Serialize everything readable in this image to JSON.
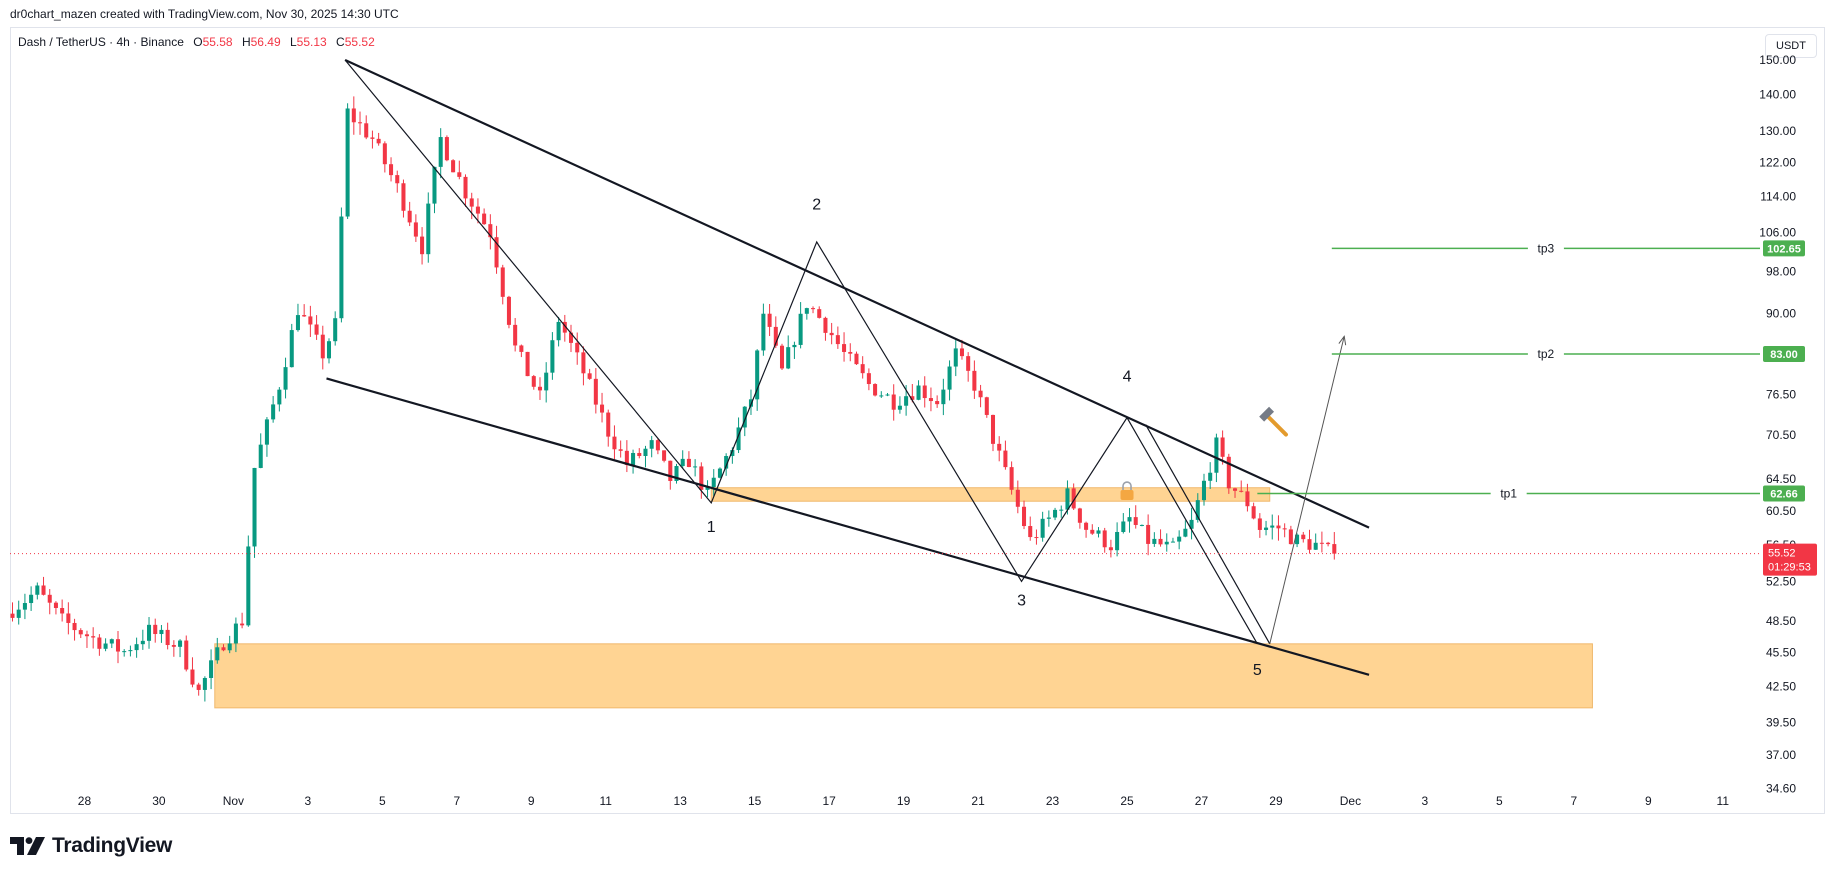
{
  "header": {
    "credit": "dr0chart_mazen created with TradingView.com, Nov 30, 2025 14:30 UTC"
  },
  "symbol": {
    "name": "Dash / TetherUS · 4h · Binance",
    "open_label": "O",
    "open": "55.58",
    "high_label": "H",
    "high": "56.49",
    "low_label": "L",
    "low": "55.13",
    "close_label": "C",
    "close": "55.52"
  },
  "currency_button": "USDT",
  "brand": {
    "name": "TradingView"
  },
  "colors": {
    "up": "#089981",
    "down": "#f23645",
    "zone": "#ffcc80",
    "target": "#4caf50",
    "line": "#131722"
  },
  "chart_data": {
    "type": "candlestick",
    "title": "",
    "xlabel": "",
    "ylabel": "",
    "x_range": [
      "2025-10-26",
      "2025-12-12"
    ],
    "y_range": [
      33,
      160
    ],
    "y_scale": "log",
    "price_ticks": [
      "150.00",
      "140.00",
      "130.00",
      "122.00",
      "114.00",
      "106.00",
      "98.00",
      "90.00",
      "76.50",
      "70.50",
      "64.50",
      "60.50",
      "56.50",
      "52.50",
      "48.50",
      "45.50",
      "42.50",
      "39.50",
      "37.00",
      "34.60"
    ],
    "date_ticks": [
      {
        "label": "28",
        "date": "2025-10-28"
      },
      {
        "label": "30",
        "date": "2025-10-30"
      },
      {
        "label": "Nov",
        "date": "2025-11-01"
      },
      {
        "label": "3",
        "date": "2025-11-03"
      },
      {
        "label": "5",
        "date": "2025-11-05"
      },
      {
        "label": "7",
        "date": "2025-11-07"
      },
      {
        "label": "9",
        "date": "2025-11-09"
      },
      {
        "label": "11",
        "date": "2025-11-11"
      },
      {
        "label": "13",
        "date": "2025-11-13"
      },
      {
        "label": "15",
        "date": "2025-11-15"
      },
      {
        "label": "17",
        "date": "2025-11-17"
      },
      {
        "label": "19",
        "date": "2025-11-19"
      },
      {
        "label": "21",
        "date": "2025-11-21"
      },
      {
        "label": "23",
        "date": "2025-11-23"
      },
      {
        "label": "25",
        "date": "2025-11-25"
      },
      {
        "label": "27",
        "date": "2025-11-27"
      },
      {
        "label": "29",
        "date": "2025-11-29"
      },
      {
        "label": "Dec",
        "date": "2025-12-01"
      },
      {
        "label": "3",
        "date": "2025-12-03"
      },
      {
        "label": "5",
        "date": "2025-12-05"
      },
      {
        "label": "7",
        "date": "2025-12-07"
      },
      {
        "label": "9",
        "date": "2025-12-09"
      },
      {
        "label": "11",
        "date": "2025-12-11"
      }
    ],
    "price_path": [
      {
        "date": "2025-10-26T00:00",
        "price": 49.2
      },
      {
        "date": "2025-10-26T20:00",
        "price": 51.5
      },
      {
        "date": "2025-10-27T12:00",
        "price": 48.5
      },
      {
        "date": "2025-10-28T08:00",
        "price": 46.8
      },
      {
        "date": "2025-10-29T04:00",
        "price": 45.6
      },
      {
        "date": "2025-10-29T20:00",
        "price": 47.5
      },
      {
        "date": "2025-10-30T16:00",
        "price": 46.0
      },
      {
        "date": "2025-10-31T04:00",
        "price": 42.0
      },
      {
        "date": "2025-10-31T20:00",
        "price": 46.5
      },
      {
        "date": "2025-11-01T08:00",
        "price": 48.5
      },
      {
        "date": "2025-11-01T16:00",
        "price": 66.0
      },
      {
        "date": "2025-11-02T08:00",
        "price": 78.0
      },
      {
        "date": "2025-11-02T20:00",
        "price": 91.0
      },
      {
        "date": "2025-11-03T12:00",
        "price": 83.0
      },
      {
        "date": "2025-11-03T20:00",
        "price": 88.0
      },
      {
        "date": "2025-11-04T04:00",
        "price": 135.0
      },
      {
        "date": "2025-11-04T20:00",
        "price": 128.0
      },
      {
        "date": "2025-11-05T12:00",
        "price": 116.0
      },
      {
        "date": "2025-11-06T04:00",
        "price": 103.0
      },
      {
        "date": "2025-11-06T16:00",
        "price": 128.0
      },
      {
        "date": "2025-11-07T08:00",
        "price": 115.0
      },
      {
        "date": "2025-11-08T00:00",
        "price": 106.0
      },
      {
        "date": "2025-11-08T16:00",
        "price": 84.0
      },
      {
        "date": "2025-11-09T08:00",
        "price": 76.0
      },
      {
        "date": "2025-11-09T20:00",
        "price": 89.0
      },
      {
        "date": "2025-11-10T12:00",
        "price": 80.0
      },
      {
        "date": "2025-11-11T04:00",
        "price": 71.0
      },
      {
        "date": "2025-11-11T16:00",
        "price": 66.5
      },
      {
        "date": "2025-11-12T08:00",
        "price": 69.0
      },
      {
        "date": "2025-11-12T20:00",
        "price": 64.5
      },
      {
        "date": "2025-11-13T08:00",
        "price": 67.0
      },
      {
        "date": "2025-11-13T20:00",
        "price": 62.5
      },
      {
        "date": "2025-11-14T12:00",
        "price": 69.0
      },
      {
        "date": "2025-11-15T00:00",
        "price": 76.0
      },
      {
        "date": "2025-11-15T08:00",
        "price": 90.0
      },
      {
        "date": "2025-11-15T20:00",
        "price": 80.0
      },
      {
        "date": "2025-11-16T12:00",
        "price": 92.0
      },
      {
        "date": "2025-11-17T00:00",
        "price": 88.0
      },
      {
        "date": "2025-11-17T12:00",
        "price": 83.0
      },
      {
        "date": "2025-11-18T04:00",
        "price": 78.0
      },
      {
        "date": "2025-11-18T20:00",
        "price": 75.5
      },
      {
        "date": "2025-11-19T12:00",
        "price": 77.5
      },
      {
        "date": "2025-11-20T00:00",
        "price": 75.5
      },
      {
        "date": "2025-11-20T12:00",
        "price": 83.0
      },
      {
        "date": "2025-11-21T00:00",
        "price": 78.0
      },
      {
        "date": "2025-11-21T12:00",
        "price": 70.0
      },
      {
        "date": "2025-11-22T00:00",
        "price": 63.0
      },
      {
        "date": "2025-11-22T12:00",
        "price": 57.0
      },
      {
        "date": "2025-11-23T00:00",
        "price": 59.5
      },
      {
        "date": "2025-11-23T12:00",
        "price": 62.5
      },
      {
        "date": "2025-11-24T00:00",
        "price": 58.5
      },
      {
        "date": "2025-11-24T16:00",
        "price": 56.5
      },
      {
        "date": "2025-11-25T04:00",
        "price": 59.5
      },
      {
        "date": "2025-11-25T16:00",
        "price": 57.0
      },
      {
        "date": "2025-11-26T08:00",
        "price": 56.0
      },
      {
        "date": "2025-11-26T20:00",
        "price": 59.0
      },
      {
        "date": "2025-11-27T04:00",
        "price": 64.0
      },
      {
        "date": "2025-11-27T12:00",
        "price": 69.0
      },
      {
        "date": "2025-11-27T20:00",
        "price": 64.0
      },
      {
        "date": "2025-11-28T08:00",
        "price": 61.5
      },
      {
        "date": "2025-11-28T16:00",
        "price": 58.5
      },
      {
        "date": "2025-11-29T04:00",
        "price": 58.5
      },
      {
        "date": "2025-11-29T16:00",
        "price": 57.0
      },
      {
        "date": "2025-11-30T04:00",
        "price": 56.5
      },
      {
        "date": "2025-11-30T14:00",
        "price": 55.52
      }
    ],
    "current_price": {
      "value": "55.52",
      "countdown": "01:29:53"
    },
    "levels": [
      {
        "name": "tp3",
        "value": 102.65,
        "label": "102.65",
        "from": "2025-11-30T12:00",
        "to": "2025-12-12T12:00"
      },
      {
        "name": "tp2",
        "value": 83.0,
        "label": "83.00",
        "from": "2025-11-30T12:00",
        "to": "2025-12-12T12:00"
      },
      {
        "name": "tp1",
        "value": 62.66,
        "label": "62.66",
        "from": "2025-11-28T12:00",
        "to": "2025-12-12T12:00"
      }
    ],
    "zones": [
      {
        "name": "demand-zone",
        "from": "2025-10-31T12:00",
        "to": "2025-12-07T12:00",
        "top": 46.3,
        "bottom": 40.7
      },
      {
        "name": "resistance-band",
        "from": "2025-11-13T20:00",
        "to": "2025-11-28T20:00",
        "top": 63.4,
        "bottom": 61.7
      }
    ],
    "trendlines": [
      {
        "name": "upper-channel",
        "from": {
          "date": "2025-11-04T00:00",
          "price": 150
        },
        "to": {
          "date": "2025-12-01T12:00",
          "price": 58.5
        }
      },
      {
        "name": "lower-channel",
        "from": {
          "date": "2025-11-03T12:00",
          "price": 79
        },
        "to": {
          "date": "2025-12-01T12:00",
          "price": 43.5
        }
      }
    ],
    "wave_path": [
      {
        "date": "2025-11-04T00:00",
        "price": 150
      },
      {
        "date": "2025-11-13T20:00",
        "price": 61.5
      },
      {
        "date": "2025-11-16T16:00",
        "price": 104
      },
      {
        "date": "2025-11-22T04:00",
        "price": 52.5
      },
      {
        "date": "2025-11-25T00:00",
        "price": 73
      },
      {
        "date": "2025-11-28T12:00",
        "price": 46.3
      }
    ],
    "wave_path_alt": [
      {
        "date": "2025-11-25T12:00",
        "price": 72
      },
      {
        "date": "2025-11-28T20:00",
        "price": 46.3
      }
    ],
    "projection": [
      {
        "date": "2025-11-28T20:00",
        "price": 46.3
      },
      {
        "date": "2025-11-30T20:00",
        "price": 86
      }
    ],
    "wave_labels": [
      {
        "text": "1",
        "date": "2025-11-13T20:00",
        "price": 58.0
      },
      {
        "text": "2",
        "date": "2025-11-16T16:00",
        "price": 111
      },
      {
        "text": "3",
        "date": "2025-11-22T04:00",
        "price": 50.0
      },
      {
        "text": "4",
        "date": "2025-11-25T00:00",
        "price": 78.5
      },
      {
        "text": "5",
        "date": "2025-11-28T12:00",
        "price": 43.5
      }
    ],
    "icons": [
      {
        "name": "hammer-icon",
        "date": "2025-11-29T00:00",
        "price": 72.0
      },
      {
        "name": "lock-icon",
        "date": "2025-11-25T00:00",
        "price": 62.6
      }
    ]
  }
}
